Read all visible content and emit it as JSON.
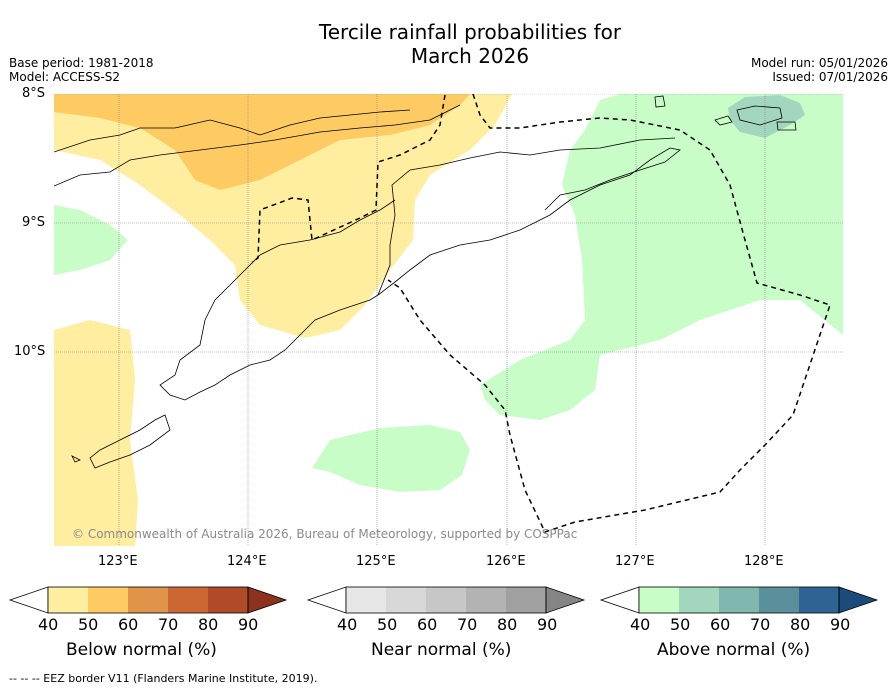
{
  "title_line1": "Tercile rainfall probabilities for",
  "title_line2": "March 2026",
  "base_period": "Base period: 1981-2018",
  "model": "Model: ACCESS-S2",
  "model_run": "Model run: 05/01/2026",
  "issued": "Issued: 07/01/2026",
  "lat_labels": [
    "8°S",
    "9°S",
    "10°S"
  ],
  "lon_labels": [
    "123°E",
    "124°E",
    "125°E",
    "126°E",
    "127°E",
    "128°E"
  ],
  "copyright": "© Commonwealth of Australia 2026, Bureau of Meteorology, supported by COSPPac",
  "colorbars": [
    {
      "label": "Below normal (%)",
      "ticks": [
        "40",
        "50",
        "60",
        "70",
        "80",
        "90"
      ],
      "colors": [
        "#ffffff",
        "#ffeda0",
        "#fecb63",
        "#e0944a",
        "#cc6633",
        "#b04a28",
        "#8e3220"
      ]
    },
    {
      "label": "Near normal (%)",
      "ticks": [
        "40",
        "50",
        "60",
        "70",
        "80",
        "90"
      ],
      "colors": [
        "#ffffff",
        "#e6e6e6",
        "#d8d8d8",
        "#c7c7c7",
        "#b3b3b3",
        "#a0a0a0",
        "#858585"
      ]
    },
    {
      "label": "Above normal (%)",
      "ticks": [
        "40",
        "50",
        "60",
        "70",
        "80",
        "90"
      ],
      "colors": [
        "#ffffff",
        "#c8fdc8",
        "#a3d6be",
        "#7fb6ae",
        "#5a8f9c",
        "#2f6394",
        "#1b4b7a"
      ]
    }
  ],
  "footer": "--  --  -- EEZ border V11 (Flanders Marine Institute, 2019)."
}
